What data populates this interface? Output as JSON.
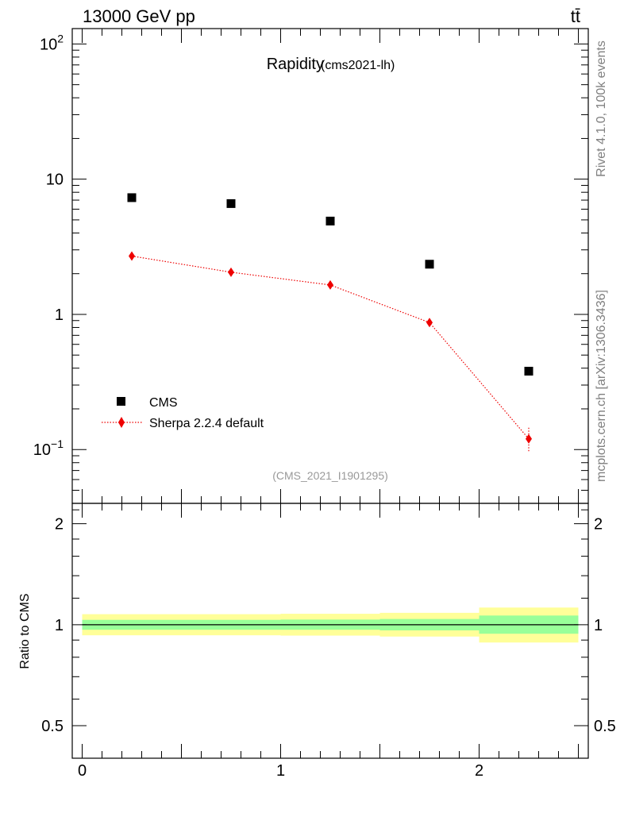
{
  "header": {
    "energy_label": "13000 GeV pp",
    "process_label": "tt̄"
  },
  "side_labels": {
    "rivet": "Rivet 4.1.0,  100k events",
    "mcplots": "mcplots.cern.ch [arXiv:1306.3436]"
  },
  "chart_data": [
    {
      "type": "scatter",
      "panel": "main",
      "title": "Rapidity",
      "subtitle": "(cms2021-lh)",
      "watermark": "(CMS_2021_I1901295)",
      "yscale": "log",
      "ylim": [
        0.04,
        130
      ],
      "xlim": [
        -0.05,
        2.55
      ],
      "yticks": [
        {
          "value": 0.1,
          "base": "10",
          "exp": "−1"
        },
        {
          "value": 1,
          "label": "1"
        },
        {
          "value": 10,
          "label": "10"
        },
        {
          "value": 100,
          "base": "10",
          "exp": "2"
        }
      ],
      "legend_position": "lower-left",
      "series": [
        {
          "name": "CMS",
          "style": "square-marker",
          "color": "#000000",
          "x": [
            0.25,
            0.75,
            1.25,
            1.75,
            2.25
          ],
          "y": [
            7.3,
            6.6,
            4.9,
            2.35,
            0.38
          ]
        },
        {
          "name": "Sherpa 2.2.4 default",
          "style": "diamond-dotted-line",
          "color": "#ee0000",
          "x": [
            0.25,
            0.75,
            1.25,
            1.75,
            2.25
          ],
          "y": [
            2.7,
            2.05,
            1.65,
            0.87,
            0.12
          ],
          "yerr_lo": [
            0.1,
            0.08,
            0.06,
            0.05,
            0.025
          ],
          "yerr_hi": [
            0.1,
            0.08,
            0.06,
            0.05,
            0.025
          ]
        }
      ]
    },
    {
      "type": "band",
      "panel": "ratio",
      "ylabel": "Ratio to CMS",
      "ylim": [
        0.4,
        2.3
      ],
      "yscale": "log",
      "xlim": [
        -0.05,
        2.55
      ],
      "yticks": [
        {
          "value": 0.5,
          "label": "0.5"
        },
        {
          "value": 1,
          "label": "1"
        },
        {
          "value": 2,
          "label": "2"
        }
      ],
      "xticks": [
        {
          "value": 0,
          "label": "0"
        },
        {
          "value": 1,
          "label": "1"
        },
        {
          "value": 2,
          "label": "2"
        }
      ],
      "bins": [
        {
          "lo": 0.0,
          "hi": 0.5,
          "inner": [
            0.966,
            1.034
          ],
          "outer": [
            0.93,
            1.075
          ]
        },
        {
          "lo": 0.5,
          "hi": 1.0,
          "inner": [
            0.966,
            1.034
          ],
          "outer": [
            0.93,
            1.075
          ]
        },
        {
          "lo": 1.0,
          "hi": 1.5,
          "inner": [
            0.966,
            1.036
          ],
          "outer": [
            0.928,
            1.078
          ]
        },
        {
          "lo": 1.5,
          "hi": 2.0,
          "inner": [
            0.962,
            1.04
          ],
          "outer": [
            0.922,
            1.085
          ]
        },
        {
          "lo": 2.0,
          "hi": 2.5,
          "inner": [
            0.94,
            1.065
          ],
          "outer": [
            0.885,
            1.125
          ]
        }
      ],
      "colors": {
        "inner": "#99ff99",
        "outer": "#ffff99",
        "reference": "#000000"
      }
    }
  ]
}
